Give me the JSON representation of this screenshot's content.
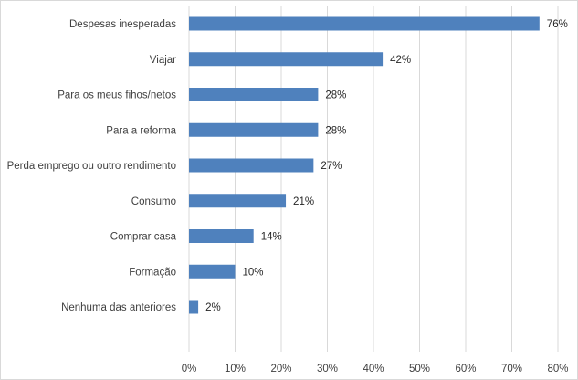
{
  "chart_data": {
    "type": "bar",
    "orientation": "horizontal",
    "categories": [
      "Despesas inesperadas",
      "Viajar",
      "Para os meus fihos/netos",
      "Para a reforma",
      "Perda emprego ou outro rendimento",
      "Consumo",
      "Comprar casa",
      "Formação",
      "Nenhuma das anteriores"
    ],
    "values": [
      76,
      42,
      28,
      28,
      27,
      21,
      14,
      10,
      2
    ],
    "value_labels": [
      "76%",
      "42%",
      "28%",
      "28%",
      "27%",
      "21%",
      "14%",
      "10%",
      "2%"
    ],
    "xlim": [
      0,
      80
    ],
    "xticks": [
      0,
      10,
      20,
      30,
      40,
      50,
      60,
      70,
      80
    ],
    "xtick_labels": [
      "0%",
      "10%",
      "20%",
      "30%",
      "40%",
      "50%",
      "60%",
      "70%",
      "80%"
    ],
    "title": "",
    "xlabel": "",
    "ylabel": "",
    "grid": "vertical",
    "legend": "none",
    "bar_color": "#4f81bd"
  }
}
